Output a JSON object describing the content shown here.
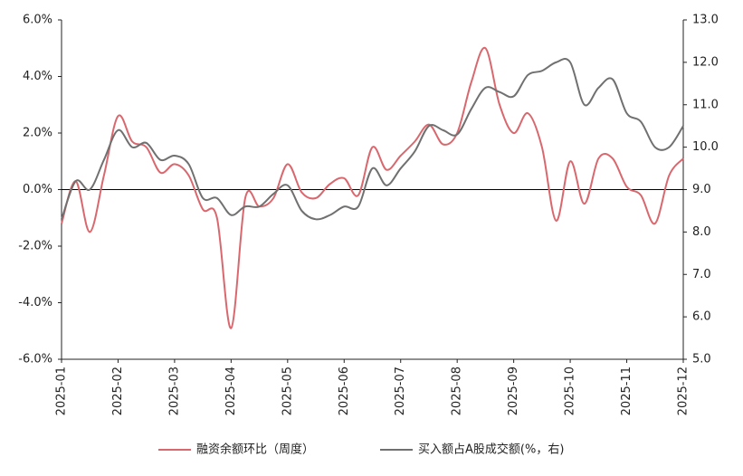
{
  "chart_data": {
    "type": "line",
    "categories": [
      "2025-01",
      null,
      null,
      null,
      "2025-02",
      null,
      null,
      null,
      "2025-03",
      null,
      null,
      null,
      "2025-04",
      null,
      null,
      null,
      "2025-05",
      null,
      null,
      null,
      "2025-06",
      null,
      null,
      null,
      "2025-07",
      null,
      null,
      null,
      "2025-08",
      null,
      null,
      null,
      "2025-09",
      null,
      null,
      null,
      "2025-10",
      null,
      null,
      null,
      "2025-11",
      null,
      null,
      null,
      "2025-12"
    ],
    "series": [
      {
        "name": "融资余额环比（周度）",
        "color": "#d9686e",
        "values": [
          -1.2,
          0.3,
          -1.5,
          0.5,
          2.6,
          1.7,
          1.5,
          0.6,
          0.9,
          0.5,
          -0.7,
          -1.0,
          -4.9,
          -0.3,
          -0.6,
          -0.3,
          0.9,
          -0.1,
          -0.3,
          0.2,
          0.4,
          -0.2,
          1.5,
          0.7,
          1.2,
          1.7,
          2.3,
          1.6,
          2.0,
          3.8,
          5.0,
          3.0,
          2.0,
          2.7,
          1.5,
          -1.1,
          1.0,
          -0.5,
          1.1,
          1.1,
          0.1,
          -0.2,
          -1.2,
          0.5,
          1.1
        ]
      },
      {
        "name": "买入额占A股成交额(%，右)",
        "color": "#707070",
        "axis": "y2",
        "values": [
          8.3,
          9.2,
          9.0,
          9.7,
          10.4,
          10.0,
          10.1,
          9.7,
          9.8,
          9.6,
          8.8,
          8.8,
          8.4,
          8.6,
          8.6,
          8.9,
          9.1,
          8.5,
          8.3,
          8.4,
          8.6,
          8.6,
          9.5,
          9.1,
          9.5,
          9.9,
          10.5,
          10.4,
          10.3,
          10.9,
          11.4,
          11.3,
          11.2,
          11.7,
          11.8,
          12.0,
          12.0,
          11.0,
          11.4,
          11.6,
          10.8,
          10.6,
          10.0,
          10.0,
          10.5
        ]
      }
    ],
    "ylim": [
      -6,
      6
    ],
    "yticks": [
      {
        "value": -6,
        "label": "-6.0%"
      },
      {
        "value": -4,
        "label": "-4.0%"
      },
      {
        "value": -2,
        "label": "-2.0%"
      },
      {
        "value": 0,
        "label": "0.0%"
      },
      {
        "value": 2,
        "label": "2.0%"
      },
      {
        "value": 4,
        "label": "4.0%"
      },
      {
        "value": 6,
        "label": "6.0%"
      }
    ],
    "y2lim": [
      5,
      13
    ],
    "y2ticks": [
      {
        "value": 5,
        "label": "5.0"
      },
      {
        "value": 6,
        "label": "6.0"
      },
      {
        "value": 7,
        "label": "7.0"
      },
      {
        "value": 8,
        "label": "8.0"
      },
      {
        "value": 9,
        "label": "9.0"
      },
      {
        "value": 10,
        "label": "10.0"
      },
      {
        "value": 11,
        "label": "11.0"
      },
      {
        "value": 12,
        "label": "12.0"
      },
      {
        "value": 13,
        "label": "13.0"
      }
    ],
    "legend": "bottom"
  }
}
